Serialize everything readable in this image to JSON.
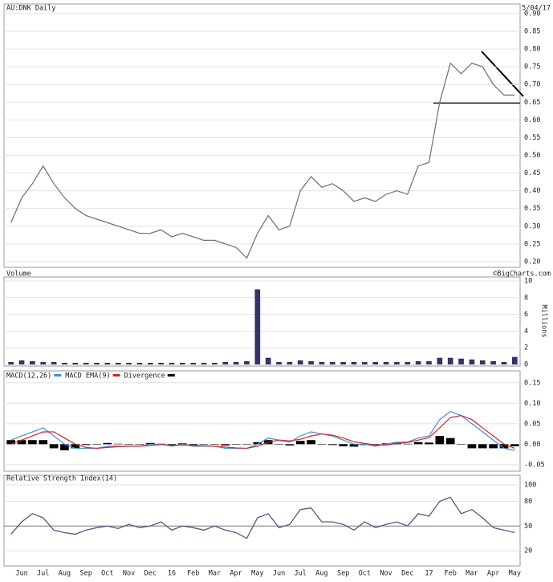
{
  "chart_data": [
    {
      "type": "line",
      "title": "AU:DNK Daily",
      "subtitle": "5/04/17",
      "color": "#777777",
      "categories": [
        null,
        "Jun",
        null,
        "Jul",
        null,
        "Aug",
        null,
        "Sep",
        null,
        "Oct",
        null,
        "Nov",
        null,
        "Dec",
        null,
        "16",
        null,
        "Feb",
        null,
        "Mar",
        null,
        "Apr",
        null,
        "May",
        null,
        "Jun",
        null,
        "Jul",
        null,
        "Aug",
        null,
        "Sep",
        null,
        "Oct",
        null,
        "Nov",
        null,
        "Dec",
        null,
        "17",
        null,
        "Feb",
        null,
        "Mar",
        null,
        "Apr",
        null,
        "May"
      ],
      "values": [
        0.31,
        0.38,
        0.42,
        0.47,
        0.42,
        0.38,
        0.35,
        0.33,
        0.32,
        0.31,
        0.3,
        0.29,
        0.28,
        0.28,
        0.29,
        0.27,
        0.28,
        0.27,
        0.26,
        0.26,
        0.25,
        0.24,
        0.21,
        0.28,
        0.33,
        0.29,
        0.3,
        0.4,
        0.44,
        0.41,
        0.42,
        0.4,
        0.37,
        0.38,
        0.37,
        0.39,
        0.4,
        0.39,
        0.47,
        0.48,
        0.65,
        0.76,
        0.73,
        0.76,
        0.75,
        0.7,
        0.67,
        0.67
      ],
      "ylim": [
        0.184,
        0.927
      ],
      "yticks": [
        {
          "value": 0.2,
          "label": "0.20"
        },
        0.25,
        {
          "value": 0.3,
          "label": "0.30"
        },
        0.35,
        {
          "value": 0.4,
          "label": "0.40"
        },
        0.45,
        {
          "value": 0.5,
          "label": "0.50"
        },
        0.55,
        {
          "value": 0.6,
          "label": "0.60"
        },
        0.65,
        {
          "value": 0.7,
          "label": "0.70"
        },
        0.75,
        {
          "value": 0.8,
          "label": "0.80"
        },
        0.85,
        {
          "value": 0.9,
          "label": "0.90"
        }
      ],
      "grid": true
    },
    {
      "type": "bar",
      "title": "Volume",
      "annotation": "©BigCharts.com",
      "y_label": "Millions",
      "color": "#333366",
      "values": [
        0.3,
        0.5,
        0.4,
        0.3,
        0.3,
        0.2,
        0.2,
        0.2,
        0.2,
        0.2,
        0.2,
        0.2,
        0.2,
        0.2,
        0.2,
        0.2,
        0.2,
        0.2,
        0.2,
        0.2,
        0.3,
        0.3,
        0.4,
        9.0,
        0.8,
        0.3,
        0.3,
        0.5,
        0.4,
        0.3,
        0.3,
        0.3,
        0.3,
        0.3,
        0.3,
        0.3,
        0.3,
        0.3,
        0.4,
        0.4,
        0.8,
        0.8,
        0.7,
        0.6,
        0.5,
        0.4,
        0.3,
        0.9
      ],
      "ylim": [
        -0.19,
        10.48
      ],
      "yticks": [
        0,
        2,
        4,
        6,
        8,
        10
      ],
      "grid": true
    },
    {
      "type": "line",
      "series": [
        {
          "name": "MACD(12,26)",
          "color": "#3a8ee6",
          "values": [
            0.01,
            0.02,
            0.03,
            0.04,
            0.02,
            0.0,
            -0.01,
            -0.01,
            -0.01,
            -0.005,
            -0.005,
            -0.005,
            -0.005,
            0.0,
            0.0,
            -0.005,
            0.0,
            -0.005,
            -0.005,
            -0.005,
            -0.01,
            -0.01,
            -0.01,
            0.0,
            0.015,
            0.01,
            0.005,
            0.02,
            0.03,
            0.025,
            0.02,
            0.01,
            0.0,
            0.0,
            -0.005,
            0.0,
            0.005,
            0.005,
            0.015,
            0.02,
            0.06,
            0.08,
            0.07,
            0.05,
            0.03,
            0.01,
            -0.01,
            -0.015
          ]
        },
        {
          "name": "MACD EMA(9)",
          "color": "#dd2222",
          "values": [
            0.0,
            0.01,
            0.02,
            0.03,
            0.03,
            0.015,
            0.0,
            -0.008,
            -0.01,
            -0.008,
            -0.006,
            -0.005,
            -0.005,
            -0.003,
            -0.001,
            -0.003,
            -0.002,
            -0.003,
            -0.004,
            -0.005,
            -0.007,
            -0.009,
            -0.01,
            -0.005,
            0.005,
            0.01,
            0.008,
            0.012,
            0.02,
            0.025,
            0.022,
            0.015,
            0.006,
            0.002,
            -0.002,
            -0.002,
            0.002,
            0.004,
            0.01,
            0.016,
            0.04,
            0.065,
            0.07,
            0.06,
            0.04,
            0.02,
            0.0,
            -0.01
          ]
        },
        {
          "name": "Divergence",
          "color": "#000000",
          "style": "histogram",
          "values": [
            0.01,
            0.01,
            0.01,
            0.01,
            -0.01,
            -0.015,
            -0.01,
            -0.002,
            0,
            0.003,
            0.001,
            0,
            0,
            0.003,
            0.001,
            -0.002,
            0.002,
            -0.002,
            -0.001,
            0,
            -0.003,
            -0.001,
            0,
            0.005,
            0.01,
            0,
            -0.003,
            0.008,
            0.01,
            0,
            -0.002,
            -0.005,
            -0.006,
            -0.002,
            -0.003,
            0.002,
            0.003,
            0.001,
            0.005,
            0.004,
            0.02,
            0.015,
            0,
            -0.01,
            -0.01,
            -0.01,
            -0.01,
            -0.005
          ]
        }
      ],
      "ylim": [
        -0.066,
        0.179
      ],
      "yticks": [
        0.15,
        {
          "value": 0.1,
          "label": "0.10"
        },
        0.05,
        {
          "value": 0,
          "label": "0.00"
        },
        -0.05
      ],
      "grid": true
    },
    {
      "type": "line",
      "title": "Relative Strength Index(14)",
      "color": "#555588",
      "values": [
        40,
        55,
        65,
        60,
        45,
        42,
        40,
        45,
        48,
        50,
        47,
        52,
        48,
        50,
        55,
        45,
        50,
        48,
        45,
        50,
        45,
        42,
        35,
        60,
        65,
        48,
        52,
        70,
        72,
        55,
        55,
        52,
        45,
        55,
        48,
        52,
        55,
        50,
        65,
        62,
        80,
        85,
        65,
        70,
        60,
        48,
        45,
        42
      ],
      "ylim": [
        1.5,
        111.7
      ],
      "yticks": [
        20,
        50,
        80,
        100
      ],
      "grid": true
    }
  ]
}
